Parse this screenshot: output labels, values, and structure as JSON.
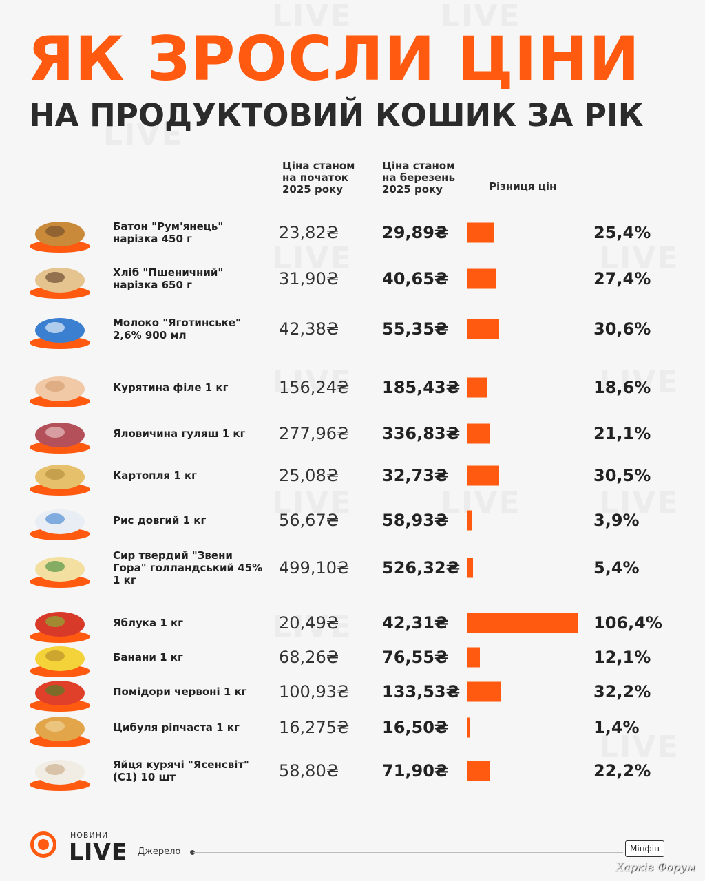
{
  "title": "ЯК ЗРОСЛИ ЦІНИ",
  "subtitle": "НА ПРОДУКТОВИЙ КОШИК ЗА РІК",
  "columns": {
    "start": "Ціна станом на початок 2025 року",
    "march": "Ціна станом на березень 2025 року",
    "diff": "Різниця цін"
  },
  "chart_data": {
    "type": "bar",
    "title": "ЯК ЗРОСЛИ ЦІНИ",
    "subtitle": "НА ПРОДУКТОВИЙ КОШИК ЗА РІК",
    "categories": [
      "Батон \"Рум'янець\" нарізка 450 г",
      "Хліб \"Пшеничний\" нарізка 650 г",
      "Молоко \"Яготинське\" 2,6% 900 мл",
      "Курятина філе 1 кг",
      "Яловичина гуляш 1 кг",
      "Картопля 1 кг",
      "Рис довгий 1 кг",
      "Сир твердий \"Звени Гора\" голландський 45% 1 кг",
      "Яблука 1 кг",
      "Банани 1 кг",
      "Помідори червоні 1 кг",
      "Цибуля ріпчаста 1 кг",
      "Яйця курячі \"Ясенсвіт\" (С1) 10 шт"
    ],
    "series": [
      {
        "name": "Ціна станом на початок 2025 року",
        "values": [
          23.82,
          31.9,
          42.38,
          156.24,
          277.96,
          25.08,
          56.67,
          499.1,
          20.49,
          68.26,
          100.93,
          16.275,
          58.8
        ]
      },
      {
        "name": "Ціна станом на березень 2025 року",
        "values": [
          29.89,
          40.65,
          55.35,
          185.43,
          336.83,
          32.73,
          58.93,
          526.32,
          42.31,
          76.55,
          133.53,
          16.5,
          71.9
        ]
      },
      {
        "name": "Різниця цін",
        "values": [
          25.4,
          27.4,
          30.6,
          18.6,
          21.1,
          30.5,
          3.9,
          5.4,
          106.4,
          12.1,
          32.2,
          1.4,
          22.2
        ]
      }
    ],
    "unit_price": "₴",
    "unit_diff": "%"
  },
  "items": [
    {
      "name": "Батон \"Рум'янець\" нарізка 450 г",
      "old": "23,82₴",
      "new": "29,89₴",
      "diff": 25.4,
      "diff_label": "25,4%",
      "icon": "baton-icon"
    },
    {
      "name": "Хліб \"Пшеничний\" нарізка 650 г",
      "old": "31,90₴",
      "new": "40,65₴",
      "diff": 27.4,
      "diff_label": "27,4%",
      "icon": "bread-icon"
    },
    {
      "name": "Молоко \"Яготинське\" 2,6% 900 мл",
      "old": "42,38₴",
      "new": "55,35₴",
      "diff": 30.6,
      "diff_label": "30,6%",
      "icon": "milk-icon"
    },
    {
      "name": "Курятина філе 1 кг",
      "old": "156,24₴",
      "new": "185,43₴",
      "diff": 18.6,
      "diff_label": "18,6%",
      "icon": "chicken-icon"
    },
    {
      "name": "Яловичина гуляш 1 кг",
      "old": "277,96₴",
      "new": "336,83₴",
      "diff": 21.1,
      "diff_label": "21,1%",
      "icon": "beef-icon"
    },
    {
      "name": "Картопля 1 кг",
      "old": "25,08₴",
      "new": "32,73₴",
      "diff": 30.5,
      "diff_label": "30,5%",
      "icon": "potato-icon"
    },
    {
      "name": "Рис довгий 1 кг",
      "old": "56,67₴",
      "new": "58,93₴",
      "diff": 3.9,
      "diff_label": "3,9%",
      "icon": "rice-icon"
    },
    {
      "name": "Сир твердий \"Звени Гора\" голландський 45% 1 кг",
      "old": "499,10₴",
      "new": "526,32₴",
      "diff": 5.4,
      "diff_label": "5,4%",
      "icon": "cheese-icon"
    },
    {
      "name": "Яблука 1 кг",
      "old": "20,49₴",
      "new": "42,31₴",
      "diff": 106.4,
      "diff_label": "106,4%",
      "icon": "apple-icon"
    },
    {
      "name": "Банани 1 кг",
      "old": "68,26₴",
      "new": "76,55₴",
      "diff": 12.1,
      "diff_label": "12,1%",
      "icon": "banana-icon"
    },
    {
      "name": "Помідори червоні 1 кг",
      "old": "100,93₴",
      "new": "133,53₴",
      "diff": 32.2,
      "diff_label": "32,2%",
      "icon": "tomato-icon"
    },
    {
      "name": "Цибуля ріпчаста 1 кг",
      "old": "16,275₴",
      "new": "16,50₴",
      "diff": 1.4,
      "diff_label": "1,4%",
      "icon": "onion-icon"
    },
    {
      "name": "Яйця курячі \"Ясенсвіт\" (С1) 10 шт",
      "old": "58,80₴",
      "new": "71,90₴",
      "diff": 22.2,
      "diff_label": "22,2%",
      "icon": "eggs-icon"
    }
  ],
  "footer": {
    "brand_small": "НОВИНИ",
    "brand_big": "LIVE",
    "source_label": "Джерело",
    "source": "Мінфін",
    "forum": "Харків Форум"
  },
  "watermark": "LIVE",
  "colors": {
    "accent": "#ff5a0f",
    "text": "#2b2b2b",
    "background": "#f6f6f6"
  }
}
